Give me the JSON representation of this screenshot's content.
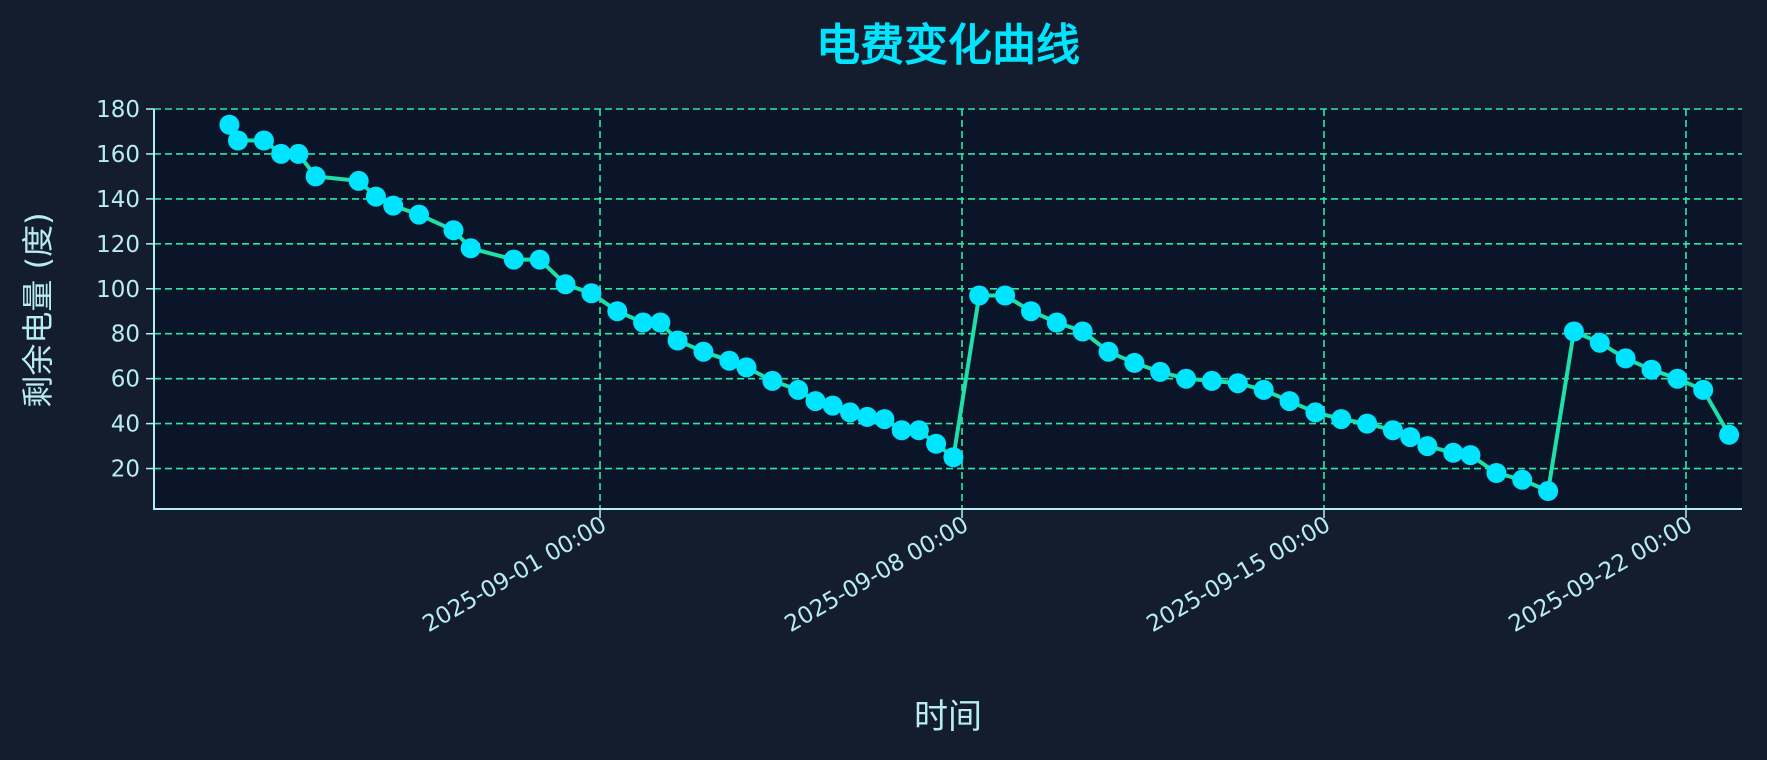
{
  "chart_data": {
    "type": "line",
    "title": "电费变化曲线",
    "xlabel": "时间",
    "ylabel": "剩余电量 (度)",
    "x_ticks": [
      "2025-09-01 00:00",
      "2025-09-08 00:00",
      "2025-09-15 00:00",
      "2025-09-22 00:00"
    ],
    "y_ticks": [
      20,
      40,
      60,
      80,
      100,
      120,
      140,
      160,
      180
    ],
    "xlim": [
      "2025-08-23 09:00",
      "2025-09-23 02:00"
    ],
    "ylim": [
      2,
      180
    ],
    "grid": true,
    "grid_style": "dashed",
    "colors": {
      "background": "#141d2e",
      "plot_background": "#0b1529",
      "title": "#00e5ff",
      "label": "#b8ecf5",
      "grid": "#2ee8a5",
      "axis": "#b8ecf5",
      "line": "#1fe0a8",
      "marker": "#00e5ff"
    },
    "series": [
      {
        "x": [
          "2025-08-24 20:00",
          "2025-08-25 00:00",
          "2025-08-25 12:00",
          "2025-08-25 20:00",
          "2025-08-26 04:00",
          "2025-08-26 12:00",
          "2025-08-27 08:00",
          "2025-08-27 16:00",
          "2025-08-28 00:00",
          "2025-08-28 12:00",
          "2025-08-29 04:00",
          "2025-08-29 12:00",
          "2025-08-30 08:00",
          "2025-08-30 20:00",
          "2025-08-31 08:00",
          "2025-08-31 20:00",
          "2025-09-01 08:00",
          "2025-09-01 20:00",
          "2025-09-02 04:00",
          "2025-09-02 12:00",
          "2025-09-03 00:00",
          "2025-09-03 12:00",
          "2025-09-03 20:00",
          "2025-09-04 08:00",
          "2025-09-04 20:00",
          "2025-09-05 04:00",
          "2025-09-05 12:00",
          "2025-09-05 20:00",
          "2025-09-06 04:00",
          "2025-09-06 12:00",
          "2025-09-06 20:00",
          "2025-09-07 04:00",
          "2025-09-07 12:00",
          "2025-09-07 20:00",
          "2025-09-08 08:00",
          "2025-09-08 20:00",
          "2025-09-09 08:00",
          "2025-09-09 20:00",
          "2025-09-10 08:00",
          "2025-09-10 20:00",
          "2025-09-11 08:00",
          "2025-09-11 20:00",
          "2025-09-12 08:00",
          "2025-09-12 20:00",
          "2025-09-13 08:00",
          "2025-09-13 20:00",
          "2025-09-14 08:00",
          "2025-09-14 20:00",
          "2025-09-15 08:00",
          "2025-09-15 20:00",
          "2025-09-16 08:00",
          "2025-09-16 16:00",
          "2025-09-17 00:00",
          "2025-09-17 12:00",
          "2025-09-17 20:00",
          "2025-09-18 08:00",
          "2025-09-18 20:00",
          "2025-09-19 08:00",
          "2025-09-19 20:00",
          "2025-09-20 08:00",
          "2025-09-20 20:00",
          "2025-09-21 08:00",
          "2025-09-21 20:00",
          "2025-09-22 08:00",
          "2025-09-22 20:00"
        ],
        "y": [
          173,
          166,
          166,
          160,
          160,
          150,
          148,
          141,
          137,
          133,
          126,
          118,
          113,
          113,
          102,
          98,
          90,
          85,
          85,
          77,
          72,
          68,
          65,
          59,
          55,
          50,
          48,
          45,
          43,
          42,
          37,
          37,
          31,
          25,
          97,
          97,
          90,
          85,
          81,
          72,
          67,
          63,
          60,
          59,
          58,
          55,
          50,
          45,
          42,
          40,
          37,
          34,
          30,
          27,
          26,
          18,
          15,
          10,
          81,
          76,
          69,
          64,
          60,
          55,
          35
        ]
      }
    ]
  }
}
